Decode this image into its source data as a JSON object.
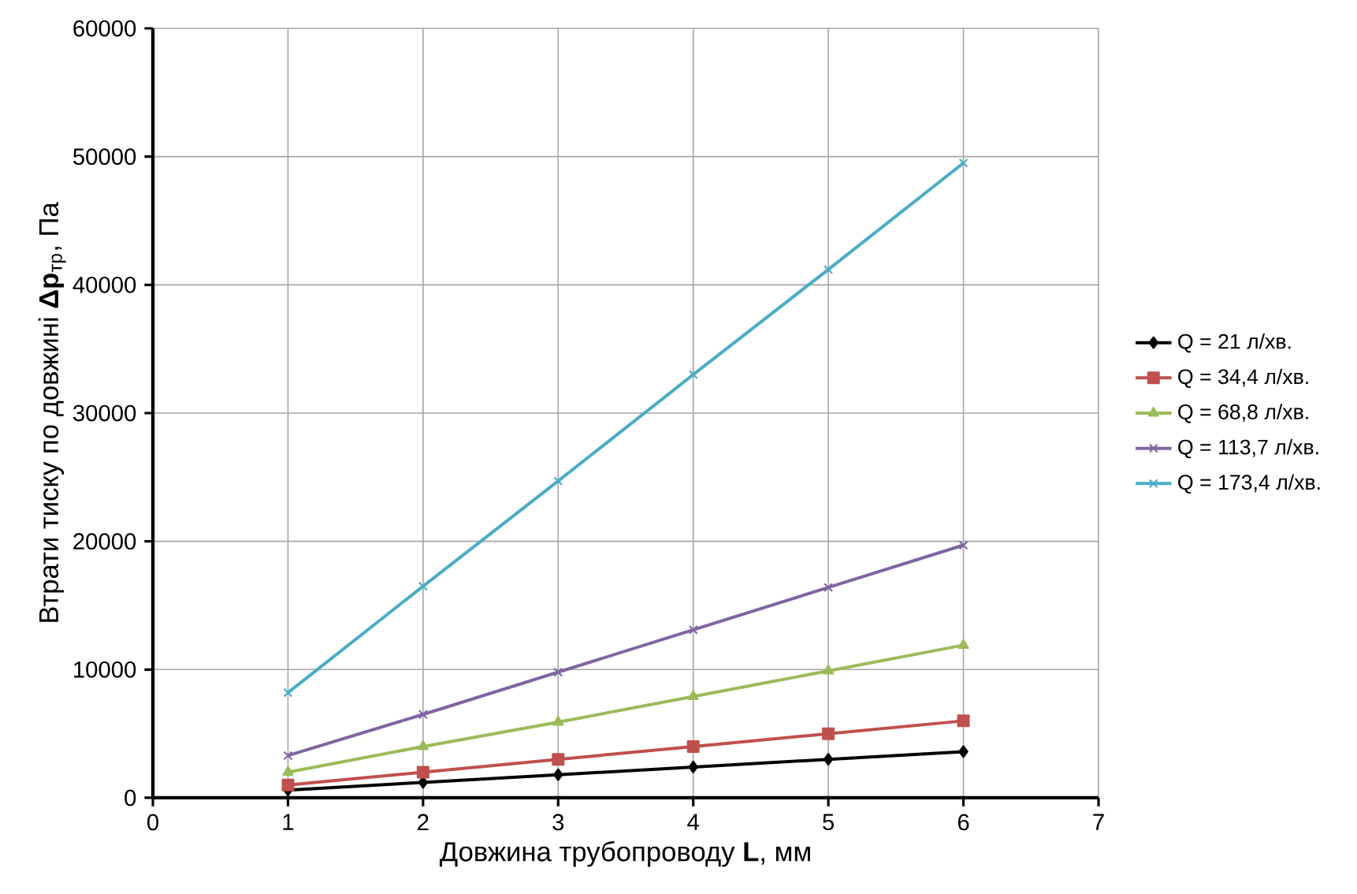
{
  "chart_data": {
    "type": "line",
    "xlabel": "Довжина трубопроводу  **L**, мм",
    "ylabel": "Втрати тиску по довжині  **Δp**$_{тр}$, Па",
    "x": [
      1,
      2,
      3,
      4,
      5,
      6
    ],
    "series": [
      {
        "name": "Q = 21 л/хв.",
        "color": "#000000",
        "marker": "diamond",
        "values": [
          600,
          1200,
          1800,
          2400,
          3000,
          3600
        ]
      },
      {
        "name": "Q = 34,4 л/хв.",
        "color": "#c0504d",
        "marker": "square",
        "values": [
          1000,
          2000,
          3000,
          4000,
          5000,
          6000
        ]
      },
      {
        "name": "Q = 68,8 л/хв.",
        "color": "#9bbb59",
        "marker": "triangle",
        "values": [
          2000,
          4000,
          5900,
          7900,
          9900,
          11900
        ]
      },
      {
        "name": "Q = 113,7 л/хв.",
        "color": "#8064a2",
        "marker": "cross",
        "values": [
          3300,
          6500,
          9800,
          13100,
          16400,
          19700
        ]
      },
      {
        "name": "Q = 173,4 л/хв.",
        "color": "#4bacc6",
        "marker": "cross",
        "values": [
          8200,
          16500,
          24700,
          33000,
          41200,
          49500
        ]
      }
    ],
    "xlim": [
      0,
      7
    ],
    "xticks": [
      0,
      1,
      2,
      3,
      4,
      5,
      6,
      7
    ],
    "ylim": [
      0,
      60000
    ],
    "yticks": [
      0,
      10000,
      20000,
      30000,
      40000,
      50000,
      60000
    ],
    "grid": true,
    "legend": "right",
    "line_style": "solid"
  }
}
